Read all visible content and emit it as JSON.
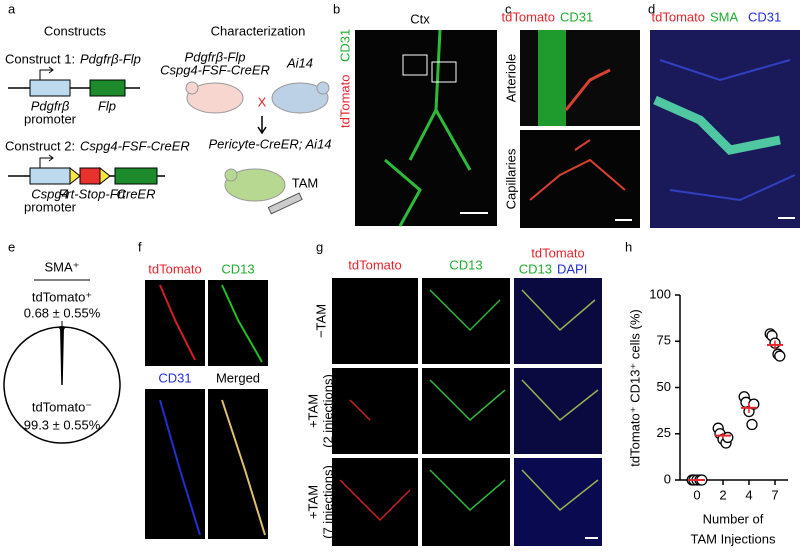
{
  "figure": {
    "a": {
      "label": "a",
      "constructs": "Constructs",
      "characterization": "Characterization",
      "construct1": "Construct 1:",
      "construct1_name": "Pdgfrβ-Flp",
      "c1_promoter_name": "Pdgfrβ",
      "c1_promoter": "promoter",
      "c1_gene": "Flp",
      "construct2": "Construct 2:",
      "construct2_name": "Cspg4-FSF-CreER",
      "c2_promoter_name": "Cspg4",
      "c2_promoter": "promoter",
      "c2_cassette": "Frt-Stop-Frt",
      "c2_gene": "CreER",
      "mouse1_line1": "Pdgfrβ-Flp",
      "mouse1_line2": "Cspg4-FSF-CreER",
      "mouse2": "Ai14",
      "cross": "X",
      "offspring": "Pericyte-CreER; Ai14",
      "tam": "TAM"
    },
    "b": {
      "label": "b",
      "region": "Ctx",
      "stain_red": "tdTomato",
      "stain_green": "CD31"
    },
    "c": {
      "label": "c",
      "stain_red": "tdTomato",
      "stain_green": "CD31",
      "row1": "Arteriole",
      "row2": "Capillaries"
    },
    "d": {
      "label": "d",
      "stain_red": "tdTomato",
      "stain_green": "SMA",
      "stain_blue": "CD31"
    },
    "e": {
      "label": "e"
    },
    "f": {
      "label": "f",
      "p1": "tdTomato",
      "p2": "CD13",
      "p3": "CD31",
      "p4": "Merged"
    },
    "g": {
      "label": "g",
      "col1": "tdTomato",
      "col2": "CD13",
      "col3_red": "tdTomato",
      "col3_green": "CD13",
      "col3_blue": "DAPI",
      "row1": "−TAM",
      "row2": "+TAM",
      "row2_note": "(2 injections)",
      "row3": "+TAM",
      "row3_note": "(7 injections)"
    },
    "h": {
      "label": "h"
    }
  },
  "chart_data": [
    {
      "type": "pie",
      "title": "SMA⁺",
      "labels": [
        "tdTomato⁺",
        "tdTomato⁻"
      ],
      "values": [
        0.68,
        99.3
      ],
      "value_labels": [
        "0.68 ± 0.55%",
        "99.3 ± 0.55%"
      ],
      "colors": [
        "#000000",
        "#ffffff"
      ]
    },
    {
      "type": "scatter",
      "categories": [
        0,
        2,
        4,
        7
      ],
      "values": [
        [
          0,
          0,
          0,
          0,
          0
        ],
        [
          28,
          25,
          22,
          20,
          23
        ],
        [
          45,
          42,
          37,
          30,
          41
        ],
        [
          79,
          78,
          74,
          68,
          67
        ]
      ],
      "means": [
        0,
        24,
        39,
        73
      ],
      "errors": [
        0,
        1.5,
        2.8,
        2.4
      ],
      "mean_color": "#e8242c",
      "point_color": "#000000",
      "ylim": [
        0,
        100
      ],
      "yticks": [
        0,
        25,
        50,
        75,
        100
      ],
      "ylabel": "tdTomato⁺ CD13⁺ cells (%)",
      "xlabel": [
        "Number of",
        "TAM Injections"
      ]
    }
  ]
}
